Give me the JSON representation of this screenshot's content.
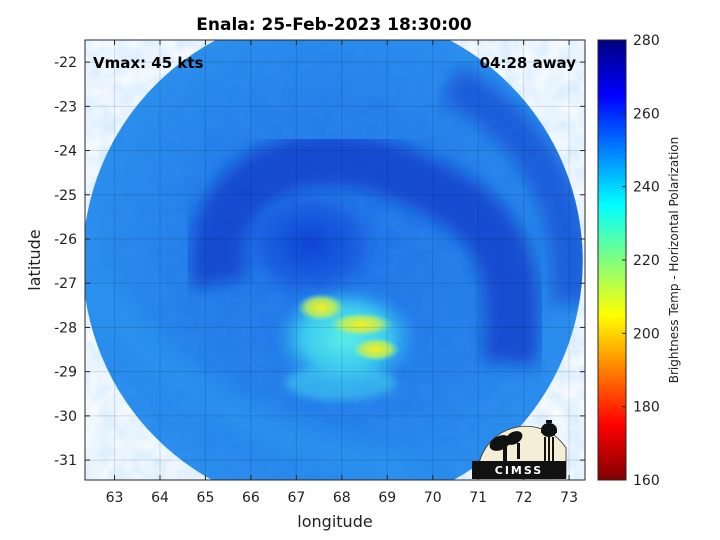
{
  "chart_data": {
    "type": "heatmap",
    "title": "Enala: 25-Feb-2023 18:30:00",
    "xlabel": "longitude",
    "ylabel": "latitude",
    "xlim": [
      62.35,
      73.35
    ],
    "ylim": [
      -31.45,
      -21.5
    ],
    "xticks": [
      63,
      64,
      65,
      66,
      67,
      68,
      69,
      70,
      71,
      72,
      73
    ],
    "yticks": [
      -22,
      -23,
      -24,
      -25,
      -26,
      -27,
      -28,
      -29,
      -30,
      -31
    ],
    "grid": true,
    "colorbar": {
      "label": "Brightness Temp - Horizontal Polarization",
      "min": 160,
      "max": 280,
      "ticks": [
        160,
        180,
        200,
        220,
        240,
        260,
        280
      ],
      "colormap": "jet"
    },
    "swath_center": [
      67.8,
      -26.5
    ],
    "feature_centers": [
      {
        "name": "eye_region_cold",
        "lon": 67.3,
        "lat": -26.1,
        "temp": 255
      },
      {
        "name": "warm_convection",
        "lon": 68.2,
        "lat": -28.0,
        "temp": 205
      }
    ],
    "annotations": {
      "vmax": "Vmax: 45 kts",
      "time_away": "04:28 away"
    },
    "colors": {
      "outside": "#ffffff",
      "frame": "#262626"
    }
  },
  "logo": {
    "text": "CIMSS"
  }
}
